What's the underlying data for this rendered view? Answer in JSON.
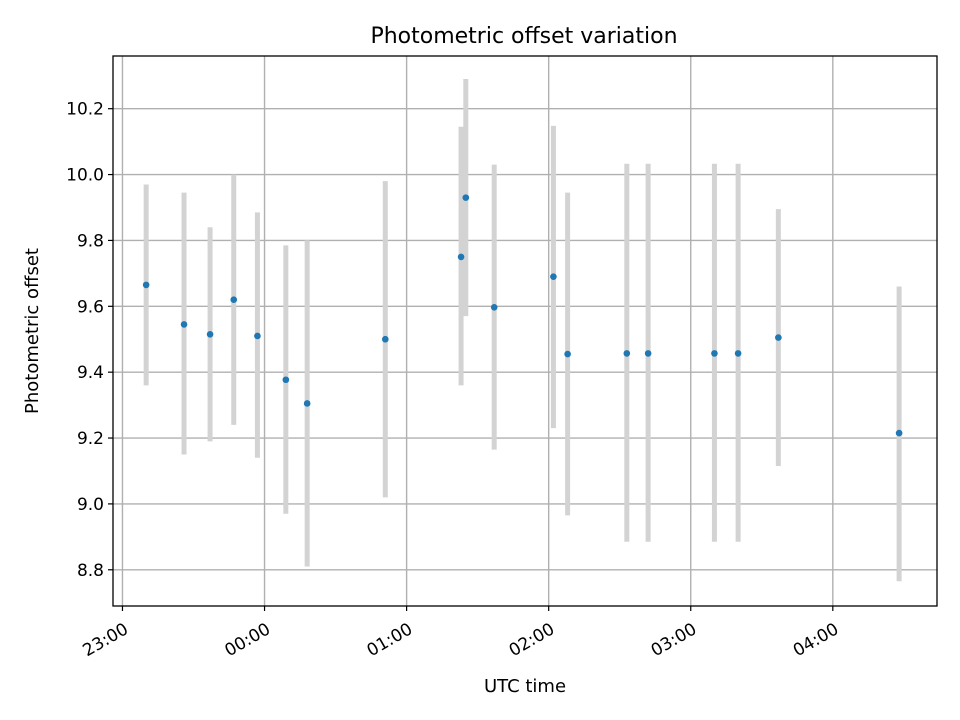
{
  "chart_data": {
    "type": "scatter",
    "title": "Photometric offset variation",
    "xlabel": "UTC time",
    "ylabel": "Photometric offset",
    "x_tick_labels": [
      "23:00",
      "00:00",
      "01:00",
      "02:00",
      "03:00",
      "04:00"
    ],
    "x_tick_times": [
      "23:00",
      "00:00",
      "01:00",
      "02:00",
      "03:00",
      "04:00"
    ],
    "y_tick_labels": [
      "8.8",
      "9.0",
      "9.2",
      "9.4",
      "9.6",
      "9.8",
      "10.0",
      "10.2"
    ],
    "y_ticks": [
      8.8,
      9.0,
      9.2,
      9.4,
      9.6,
      9.8,
      10.0,
      10.2
    ],
    "xlim": [
      "22:56",
      "04:44"
    ],
    "ylim": [
      8.69,
      10.36
    ],
    "grid": true,
    "point_color": "#1f77b4",
    "errorbar_color": "#d3d3d3",
    "points": [
      {
        "time": "23:10",
        "y": 9.665,
        "low": 9.36,
        "high": 9.97
      },
      {
        "time": "23:26",
        "y": 9.545,
        "low": 9.15,
        "high": 9.945
      },
      {
        "time": "23:37",
        "y": 9.515,
        "low": 9.19,
        "high": 9.84
      },
      {
        "time": "23:47",
        "y": 9.62,
        "low": 9.24,
        "high": 10.0
      },
      {
        "time": "23:57",
        "y": 9.51,
        "low": 9.14,
        "high": 9.885
      },
      {
        "time": "00:09",
        "y": 9.377,
        "low": 8.97,
        "high": 9.785
      },
      {
        "time": "00:18",
        "y": 9.305,
        "low": 8.81,
        "high": 9.8
      },
      {
        "time": "00:51",
        "y": 9.5,
        "low": 9.02,
        "high": 9.98
      },
      {
        "time": "01:23",
        "y": 9.75,
        "low": 9.36,
        "high": 10.145
      },
      {
        "time": "01:25",
        "y": 9.93,
        "low": 9.57,
        "high": 10.29
      },
      {
        "time": "01:37",
        "y": 9.597,
        "low": 9.165,
        "high": 10.03
      },
      {
        "time": "02:02",
        "y": 9.69,
        "low": 9.23,
        "high": 10.148
      },
      {
        "time": "02:08",
        "y": 9.455,
        "low": 8.965,
        "high": 9.945
      },
      {
        "time": "02:33",
        "y": 9.457,
        "low": 8.885,
        "high": 10.033
      },
      {
        "time": "02:42",
        "y": 9.457,
        "low": 8.885,
        "high": 10.033
      },
      {
        "time": "03:10",
        "y": 9.457,
        "low": 8.885,
        "high": 10.033
      },
      {
        "time": "03:20",
        "y": 9.457,
        "low": 8.885,
        "high": 10.033
      },
      {
        "time": "03:37",
        "y": 9.505,
        "low": 9.115,
        "high": 9.895
      },
      {
        "time": "04:28",
        "y": 9.215,
        "low": 8.765,
        "high": 9.66
      }
    ]
  }
}
